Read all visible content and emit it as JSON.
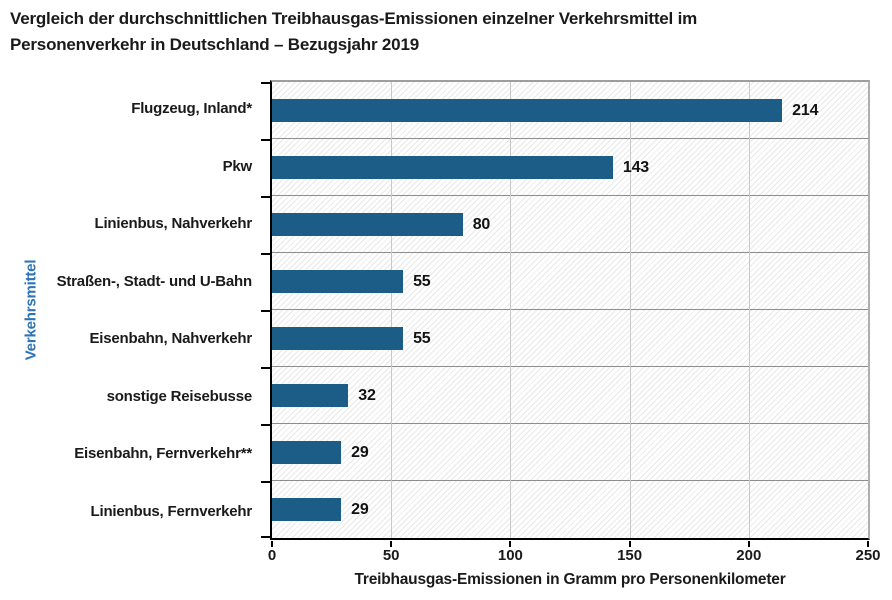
{
  "header": {
    "title_line1": "Vergleich der durchschnittlichen Treibhausgas-Emissionen einzelner Verkehrsmittel im",
    "title_line2": "Personenverkehr in Deutschland – Bezugsjahr 2019"
  },
  "chart_data": {
    "type": "bar",
    "orientation": "horizontal",
    "title": "Vergleich der durchschnittlichen Treibhausgas-Emissionen einzelner Verkehrsmittel im Personenverkehr in Deutschland – Bezugsjahr 2019",
    "categories": [
      "Flugzeug, Inland*",
      "Pkw",
      "Linienbus, Nahverkehr",
      "Straßen-, Stadt- und U-Bahn",
      "Eisenbahn, Nahverkehr",
      "sonstige Reisebusse",
      "Eisenbahn, Fernverkehr**",
      "Linienbus, Fernverkehr"
    ],
    "values": [
      214,
      143,
      80,
      55,
      55,
      32,
      29,
      29
    ],
    "xlabel": "Treibhausgas-Emissionen in Gramm pro Personenkilometer",
    "ylabel": "Verkehrsmittel",
    "xlim": [
      0,
      250
    ],
    "xticks": [
      0,
      50,
      100,
      150,
      200,
      250
    ],
    "grid": "on",
    "legend": "none",
    "bar_color": "#1c5d88",
    "ylabel_color": "#2d73b6",
    "background_pattern": "diagonal-hatch"
  }
}
